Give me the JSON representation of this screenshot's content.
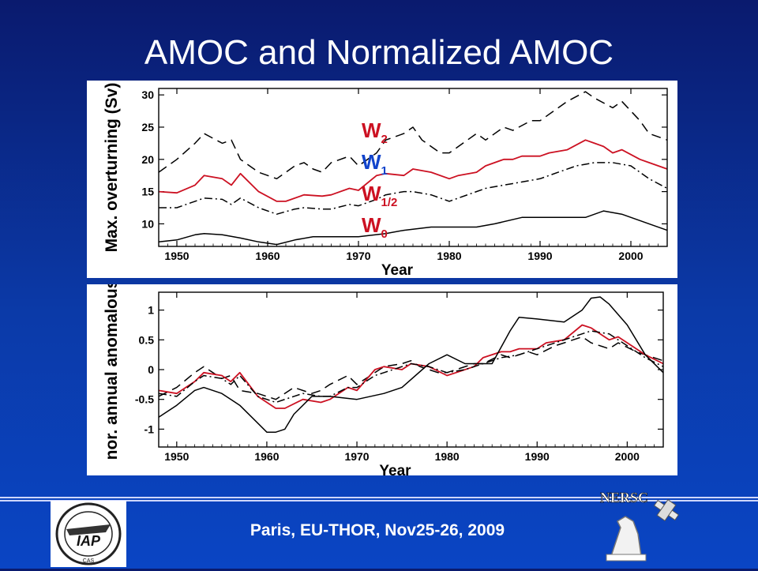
{
  "slide": {
    "title": "AMOC and Normalized AMOC",
    "footer": "Paris, EU-THOR, Nov25-26, 2009",
    "logos": {
      "left": {
        "text": "IAP",
        "sub": "CAS",
        "icon": "iap-logo-icon"
      },
      "right": {
        "text": "NERSC",
        "icon": "nersc-logo-icon"
      }
    }
  },
  "chart_data": [
    {
      "type": "line",
      "xlabel": "Year",
      "ylabel": "Max. overturning (Sv)",
      "xlim": [
        1948,
        2004
      ],
      "ylim": [
        6.5,
        31
      ],
      "xticks": [
        1950,
        1960,
        1970,
        1980,
        1990,
        2000
      ],
      "yticks": [
        10,
        15,
        20,
        25,
        30
      ],
      "legend": {
        "placement": "center",
        "entries": [
          {
            "label": "W",
            "sub": "2",
            "color": "#cc1122",
            "sub_color": "#cc1122"
          },
          {
            "label": "W",
            "sub": "1",
            "color": "#1144cc",
            "sub_color": "#1144cc"
          },
          {
            "label": "W",
            "sub": "1/2",
            "color": "#cc1122",
            "sub_color": "#cc1122"
          },
          {
            "label": "W",
            "sub": "0",
            "color": "#cc1122",
            "sub_color": "#cc1122"
          }
        ]
      },
      "series": [
        {
          "style": "dashed",
          "color": "#000000",
          "x": [
            1948,
            1950,
            1952,
            1953,
            1955,
            1956,
            1957,
            1959,
            1961,
            1963,
            1964,
            1965,
            1966,
            1967,
            1969,
            1970,
            1972,
            1973,
            1975,
            1976,
            1977,
            1979,
            1980,
            1981,
            1983,
            1984,
            1986,
            1987,
            1989,
            1990,
            1992,
            1993,
            1995,
            1996,
            1998,
            1999,
            2001,
            2002,
            2004
          ],
          "y": [
            18,
            20,
            22.5,
            24,
            22.5,
            23,
            20,
            18,
            17,
            19,
            19.5,
            18.5,
            18,
            19.5,
            20.5,
            19,
            21,
            23,
            24,
            25,
            23,
            21,
            21,
            22,
            24,
            23,
            25,
            24.5,
            26,
            26,
            28,
            29,
            30.5,
            29.5,
            28,
            29,
            26,
            24,
            23
          ]
        },
        {
          "style": "solid",
          "color": "#cc1122",
          "x": [
            1948,
            1950,
            1952,
            1953,
            1955,
            1956,
            1957,
            1959,
            1961,
            1962,
            1964,
            1966,
            1967,
            1969,
            1970,
            1972,
            1973,
            1975,
            1976,
            1978,
            1980,
            1981,
            1983,
            1984,
            1986,
            1987,
            1988,
            1990,
            1991,
            1993,
            1995,
            1996,
            1997,
            1998,
            1999,
            2001,
            2002,
            2004
          ],
          "y": [
            15,
            14.8,
            16,
            17.5,
            17,
            16,
            17.8,
            15,
            13.5,
            13.5,
            14.5,
            14.3,
            14.5,
            15.5,
            15.2,
            17.5,
            17.8,
            17.5,
            18.5,
            18,
            17,
            17.5,
            18,
            19,
            20,
            20,
            20.5,
            20.5,
            21,
            21.5,
            23,
            22.5,
            22,
            21,
            21.5,
            20,
            19.5,
            18.5
          ]
        },
        {
          "style": "dashdot",
          "color": "#000000",
          "x": [
            1948,
            1950,
            1952,
            1953,
            1955,
            1956,
            1957,
            1959,
            1961,
            1963,
            1964,
            1966,
            1967,
            1969,
            1970,
            1972,
            1973,
            1975,
            1976,
            1978,
            1980,
            1982,
            1984,
            1986,
            1988,
            1990,
            1992,
            1994,
            1996,
            1998,
            2000,
            2002,
            2004
          ],
          "y": [
            12.5,
            12.5,
            13.5,
            14,
            13.8,
            13,
            14,
            12.5,
            11.5,
            12.3,
            12.5,
            12.3,
            12.3,
            13,
            12.8,
            13.8,
            14.5,
            15,
            15,
            14.5,
            13.5,
            14.5,
            15.5,
            16,
            16.5,
            17,
            18,
            19,
            19.5,
            19.5,
            19,
            17,
            15.5
          ]
        },
        {
          "style": "solid",
          "color": "#000000",
          "x": [
            1948,
            1950,
            1952,
            1953,
            1955,
            1957,
            1959,
            1961,
            1963,
            1965,
            1967,
            1970,
            1973,
            1975,
            1978,
            1980,
            1983,
            1985,
            1988,
            1990,
            1993,
            1995,
            1997,
            1999,
            2002,
            2004
          ],
          "y": [
            7.2,
            7.5,
            8.3,
            8.5,
            8.3,
            7.8,
            7.2,
            6.8,
            7.5,
            8,
            8,
            8,
            8.5,
            9,
            9.5,
            9.5,
            9.5,
            10,
            11,
            11,
            11,
            11,
            12,
            11.5,
            10,
            9
          ]
        }
      ]
    },
    {
      "type": "line",
      "xlabel": "Year",
      "ylabel": "nor. annual anomalous",
      "xlim": [
        1948,
        2004
      ],
      "ylim": [
        -1.3,
        1.3
      ],
      "xticks": [
        1950,
        1960,
        1970,
        1980,
        1990,
        2000
      ],
      "yticks": [
        -1,
        -0.5,
        0,
        0.5,
        1
      ],
      "series": [
        {
          "style": "dashed",
          "color": "#000000",
          "x": [
            1948,
            1950,
            1952,
            1953,
            1955,
            1956,
            1957,
            1959,
            1961,
            1963,
            1965,
            1966,
            1967,
            1969,
            1970,
            1972,
            1973,
            1975,
            1976,
            1977,
            1979,
            1980,
            1981,
            1983,
            1984,
            1986,
            1987,
            1989,
            1990,
            1992,
            1993,
            1995,
            1996,
            1998,
            1999,
            2001,
            2002,
            2004
          ],
          "y": [
            -0.45,
            -0.3,
            -0.05,
            0.05,
            -0.15,
            -0.1,
            -0.35,
            -0.4,
            -0.5,
            -0.3,
            -0.4,
            -0.35,
            -0.25,
            -0.1,
            -0.25,
            -0.05,
            0.05,
            0.1,
            0.15,
            0.05,
            -0.05,
            -0.05,
            0,
            0.1,
            0.1,
            0.25,
            0.2,
            0.3,
            0.25,
            0.4,
            0.45,
            0.55,
            0.45,
            0.35,
            0.45,
            0.3,
            0.25,
            0.15
          ]
        },
        {
          "style": "solid",
          "color": "#cc1122",
          "x": [
            1948,
            1950,
            1952,
            1953,
            1955,
            1956,
            1957,
            1959,
            1961,
            1962,
            1964,
            1966,
            1967,
            1969,
            1970,
            1972,
            1973,
            1975,
            1976,
            1978,
            1980,
            1981,
            1983,
            1984,
            1986,
            1987,
            1988,
            1990,
            1991,
            1993,
            1995,
            1996,
            1997,
            1998,
            1999,
            2001,
            2002,
            2004
          ],
          "y": [
            -0.35,
            -0.4,
            -0.2,
            -0.05,
            -0.1,
            -0.2,
            -0.05,
            -0.45,
            -0.65,
            -0.65,
            -0.5,
            -0.55,
            -0.5,
            -0.3,
            -0.35,
            0,
            0.05,
            0,
            0.1,
            0.05,
            -0.1,
            -0.05,
            0.05,
            0.2,
            0.3,
            0.3,
            0.35,
            0.35,
            0.45,
            0.5,
            0.75,
            0.7,
            0.6,
            0.5,
            0.55,
            0.35,
            0.25,
            0.1
          ]
        },
        {
          "style": "dashdot",
          "color": "#000000",
          "x": [
            1948,
            1950,
            1952,
            1953,
            1955,
            1956,
            1957,
            1959,
            1961,
            1963,
            1964,
            1966,
            1967,
            1969,
            1970,
            1972,
            1973,
            1975,
            1976,
            1978,
            1980,
            1982,
            1984,
            1986,
            1988,
            1990,
            1992,
            1994,
            1996,
            1998,
            2000,
            2002,
            2004
          ],
          "y": [
            -0.4,
            -0.45,
            -0.2,
            -0.1,
            -0.15,
            -0.25,
            -0.1,
            -0.45,
            -0.55,
            -0.45,
            -0.4,
            -0.45,
            -0.45,
            -0.3,
            -0.3,
            -0.1,
            -0.05,
            0.05,
            0.1,
            0.05,
            -0.05,
            0,
            0.1,
            0.2,
            0.25,
            0.35,
            0.45,
            0.55,
            0.65,
            0.6,
            0.4,
            0.2,
            0.05
          ]
        },
        {
          "style": "solid",
          "color": "#000000",
          "x": [
            1948,
            1950,
            1952,
            1953,
            1955,
            1957,
            1959,
            1960,
            1961,
            1962,
            1963,
            1965,
            1967,
            1970,
            1973,
            1975,
            1978,
            1980,
            1982,
            1985,
            1987,
            1988,
            1990,
            1993,
            1995,
            1996,
            1997,
            1998,
            2000,
            2002,
            2004
          ],
          "y": [
            -0.8,
            -0.6,
            -0.35,
            -0.3,
            -0.4,
            -0.6,
            -0.9,
            -1.05,
            -1.05,
            -1,
            -0.75,
            -0.45,
            -0.45,
            -0.5,
            -0.4,
            -0.3,
            0.1,
            0.25,
            0.1,
            0.1,
            0.65,
            0.88,
            0.85,
            0.8,
            1,
            1.2,
            1.22,
            1.1,
            0.75,
            0.25,
            -0.05
          ]
        }
      ]
    }
  ]
}
